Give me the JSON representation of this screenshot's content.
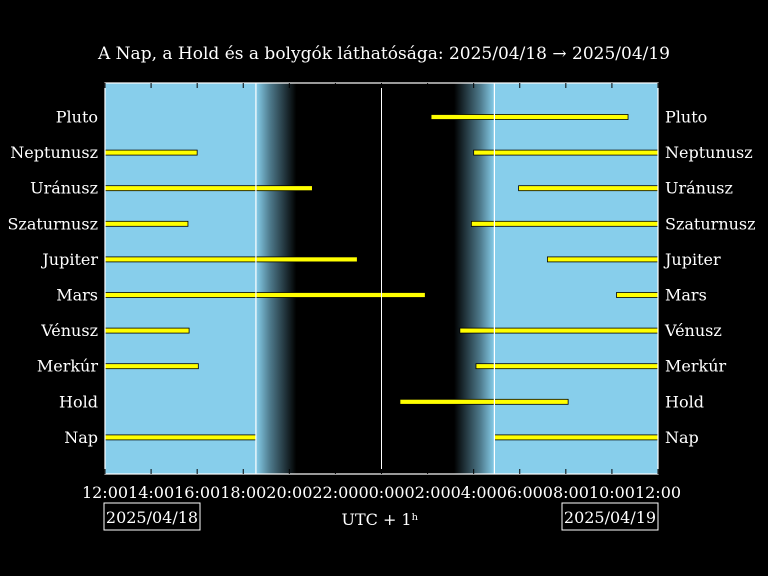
{
  "title": "A Nap, a Hold és a bolygók láthatósága: 2025/04/18 → 2025/04/19",
  "xlabel": "UTC + 1ʰ",
  "date_left": "2025/04/18",
  "date_right": "2025/04/19",
  "colors": {
    "day": "#87ceeb",
    "night": "#000000",
    "bar": "#ffff00",
    "frame": "#ffffff",
    "bar_edge": "#000000"
  },
  "chart_data": {
    "type": "bar",
    "orientation": "horizontal-ranges",
    "title": "A Nap, a Hold és a bolygók láthatósága: 2025/04/18 → 2025/04/19",
    "xlabel": "UTC + 1ʰ",
    "x_unit": "hours since 2025/04/18 12:00",
    "xlim": [
      0,
      24
    ],
    "x_ticks": [
      0,
      2,
      4,
      6,
      8,
      10,
      12,
      14,
      16,
      18,
      20,
      22,
      24
    ],
    "x_tick_labels": [
      "12:00",
      "14:00",
      "16:00",
      "18:00",
      "20:00",
      "22:00",
      "00:00",
      "02:00",
      "04:00",
      "06:00",
      "08:00",
      "10:00",
      "12:00"
    ],
    "sunset": 6.55,
    "sunrise": 16.9,
    "twilight_end": 8.3,
    "twilight_start": 15.15,
    "midnight_line": 12.0,
    "categories": [
      "Nap",
      "Hold",
      "Merkúr",
      "Vénusz",
      "Mars",
      "Jupiter",
      "Szaturnusz",
      "Uránusz",
      "Neptunusz",
      "Pluto"
    ],
    "series": [
      {
        "label": "Pluto",
        "ranges": [
          [
            14.15,
            22.7
          ]
        ]
      },
      {
        "label": "Neptunusz",
        "ranges": [
          [
            0,
            4.0
          ],
          [
            16.0,
            24
          ]
        ]
      },
      {
        "label": "Uránusz",
        "ranges": [
          [
            0,
            9.0
          ],
          [
            17.95,
            24
          ]
        ]
      },
      {
        "label": "Szaturnusz",
        "ranges": [
          [
            0,
            3.6
          ],
          [
            15.9,
            24
          ]
        ]
      },
      {
        "label": "Jupiter",
        "ranges": [
          [
            0,
            10.95
          ],
          [
            19.2,
            24
          ]
        ]
      },
      {
        "label": "Mars",
        "ranges": [
          [
            0,
            13.9
          ],
          [
            22.2,
            24
          ]
        ]
      },
      {
        "label": "Vénusz",
        "ranges": [
          [
            0,
            3.65
          ],
          [
            15.4,
            24
          ]
        ]
      },
      {
        "label": "Merkúr",
        "ranges": [
          [
            0,
            4.05
          ],
          [
            16.1,
            24
          ]
        ]
      },
      {
        "label": "Hold",
        "ranges": [
          [
            12.8,
            20.1
          ]
        ]
      },
      {
        "label": "Nap",
        "ranges": [
          [
            0,
            6.55
          ],
          [
            16.9,
            24
          ]
        ]
      }
    ]
  }
}
